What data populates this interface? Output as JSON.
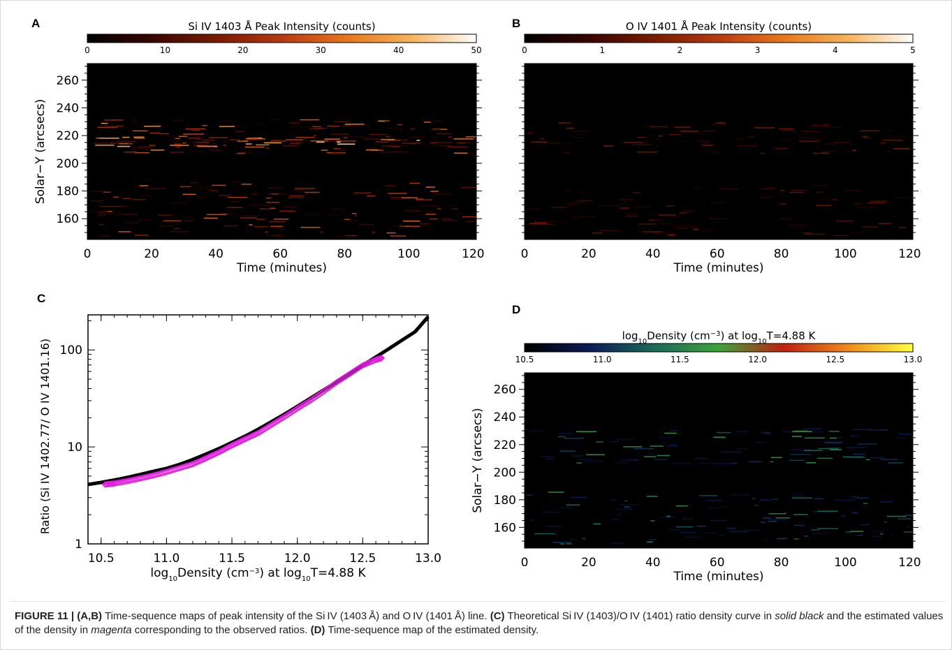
{
  "figure": {
    "caption": {
      "label": "FIGURE 11 |",
      "lead_ab": "(A,B)",
      "text_ab": " Time-sequence maps of peak intensity of the Si IV (1403 Å) and O IV (1401 Å) line. ",
      "lead_c": "(C)",
      "text_c1": " Theoretical Si IV (1403)/O IV (1401) ratio density curve in ",
      "em_solid": "solid black",
      "text_c2": " and the estimated values of the density in ",
      "em_magenta": "magenta",
      "text_c3": " corresponding to the observed ratios. ",
      "lead_d": "(D)",
      "text_d": " Time-sequence map of the estimated density."
    }
  },
  "chart_data": [
    {
      "panel": "A",
      "type": "heatmap",
      "colorbar_title": "Si IV 1403 Å Peak Intensity (counts)",
      "colorbar_ticks": [
        "0",
        "10",
        "20",
        "30",
        "40",
        "50"
      ],
      "colorbar_range": [
        0,
        50
      ],
      "colormap": [
        "#000000",
        "#3a0500",
        "#7a1a00",
        "#b83a10",
        "#e8761c",
        "#f7b25c",
        "#ffffff"
      ],
      "xlabel": "Time (minutes)",
      "ylabel": "Solar−Y (arcsecs)",
      "xlim": [
        0,
        121
      ],
      "ylim": [
        145,
        272
      ],
      "xticks": [
        0,
        20,
        40,
        60,
        80,
        100,
        120
      ],
      "yticks": [
        160,
        180,
        200,
        220,
        240,
        260
      ],
      "bands": [
        {
          "y": [
            147,
            187
          ],
          "level": 0.55
        },
        {
          "y": [
            207,
            232
          ],
          "level": 0.7
        },
        {
          "y": [
            212,
            220
          ],
          "level": 0.95
        }
      ]
    },
    {
      "panel": "B",
      "type": "heatmap",
      "colorbar_title": "O IV 1401 Å Peak Intensity (counts)",
      "colorbar_ticks": [
        "0",
        "1",
        "2",
        "3",
        "4",
        "5"
      ],
      "colorbar_range": [
        0,
        5
      ],
      "colormap": [
        "#000000",
        "#3a0500",
        "#7a1a00",
        "#b83a10",
        "#e8761c",
        "#f7b25c",
        "#ffffff"
      ],
      "xlabel": "Time (minutes)",
      "ylabel": "",
      "xlim": [
        0,
        121
      ],
      "ylim": [
        145,
        272
      ],
      "xticks": [
        0,
        20,
        40,
        60,
        80,
        100,
        120
      ],
      "yticks": [
        160,
        180,
        200,
        220,
        240,
        260
      ],
      "bands": [
        {
          "y": [
            148,
            186
          ],
          "level": 0.25
        },
        {
          "y": [
            207,
            230
          ],
          "level": 0.3
        }
      ]
    },
    {
      "panel": "C",
      "type": "scatter",
      "xlabel": "log10Density (cm−3) at log10T=4.88 K",
      "ylabel": "Ratio (Si IV 1402.77/ O IV 1401.16)",
      "xlim": [
        10.4,
        13.0
      ],
      "ylim": [
        1,
        230
      ],
      "yscale": "log",
      "xticks": [
        "10.5",
        "11.0",
        "11.5",
        "12.0",
        "12.5",
        "13.0"
      ],
      "yticks": [
        "1",
        "10",
        "100"
      ],
      "series": [
        {
          "style": "solid-black-line",
          "color": "#000000",
          "x": [
            10.4,
            10.5,
            10.6,
            10.7,
            10.8,
            10.9,
            11.0,
            11.1,
            11.2,
            11.3,
            11.4,
            11.5,
            11.6,
            11.7,
            11.8,
            11.9,
            12.0,
            12.1,
            12.2,
            12.3,
            12.4,
            12.5,
            12.6,
            12.7,
            12.8,
            12.9,
            13.0
          ],
          "y": [
            4.1,
            4.3,
            4.55,
            4.85,
            5.2,
            5.6,
            6.0,
            6.6,
            7.4,
            8.4,
            9.6,
            11.1,
            12.9,
            15.2,
            18.1,
            21.7,
            26.2,
            31.7,
            38.5,
            46.8,
            57.0,
            69.5,
            84.5,
            103,
            126,
            154,
            220
          ]
        },
        {
          "style": "magenta-diamonds",
          "color": "#e01ee0",
          "x": [
            10.53,
            10.6,
            10.7,
            10.8,
            10.9,
            11.0,
            11.1,
            11.2,
            11.3,
            11.4,
            11.5,
            11.6,
            11.7,
            11.8,
            11.9,
            12.0,
            12.1,
            12.2,
            12.3,
            12.4,
            12.5,
            12.6,
            12.65
          ],
          "y": [
            4.2,
            4.3,
            4.55,
            4.85,
            5.2,
            5.65,
            6.2,
            6.8,
            7.8,
            9.0,
            10.6,
            12.3,
            14.2,
            17.2,
            20.8,
            25.5,
            30.8,
            38.0,
            47.5,
            58.0,
            71.0,
            81.0,
            85.0
          ]
        }
      ]
    },
    {
      "panel": "D",
      "type": "heatmap",
      "colorbar_title": "log10Density (cm−3) at log10T=4.88 K",
      "colorbar_ticks": [
        "10.5",
        "11.0",
        "11.5",
        "12.0",
        "12.5",
        "13.0"
      ],
      "colorbar_range": [
        10.5,
        13.0
      ],
      "colormap": [
        "#000000",
        "#0a1a55",
        "#1a6a5a",
        "#3ea33a",
        "#c02010",
        "#f08a1a",
        "#ffff40"
      ],
      "xlabel": "Time (minutes)",
      "ylabel": "Solar−Y (arcsecs)",
      "xlim": [
        0,
        121
      ],
      "ylim": [
        145,
        272
      ],
      "xticks": [
        0,
        20,
        40,
        60,
        80,
        100,
        120
      ],
      "yticks": [
        160,
        180,
        200,
        220,
        240,
        260
      ],
      "bands": [
        {
          "y": [
            148,
            186
          ],
          "level": 0.35
        },
        {
          "y": [
            206,
            232
          ],
          "level": 0.4
        }
      ]
    }
  ]
}
